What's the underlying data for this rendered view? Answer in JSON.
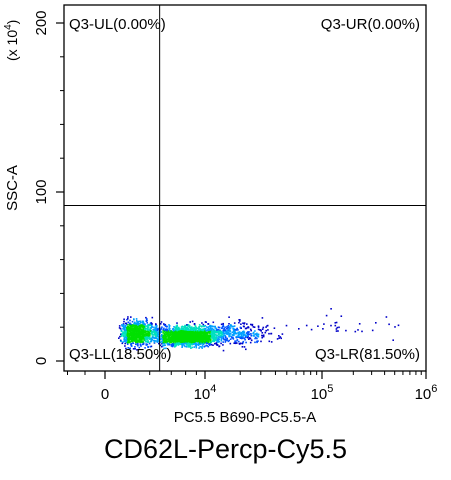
{
  "chart_data": {
    "type": "scatter",
    "title": "CD62L-Percp-Cy5.5",
    "xlabel": "PC5.5 B690-PC5.5-A",
    "ylabel": "SSC-A",
    "y_scale_note": "(x 10",
    "y_scale_exp": "4",
    "x_scale": "log",
    "y_scale": "linear",
    "x_ticks": [
      {
        "value": 0,
        "base": "0",
        "exp": ""
      },
      {
        "value": 10000,
        "base": "10",
        "exp": "4"
      },
      {
        "value": 100000,
        "base": "10",
        "exp": "5"
      },
      {
        "value": 1000000,
        "base": "10",
        "exp": "6"
      }
    ],
    "y_ticks": [
      {
        "value": 0,
        "label": "0"
      },
      {
        "value": 100,
        "label": "100"
      },
      {
        "value": 200,
        "label": "200"
      }
    ],
    "ylim": [
      -5,
      205
    ],
    "gate": {
      "x": 2800,
      "y": 92
    },
    "quadrants": [
      {
        "name": "Q3-UL",
        "percent": "0.00%",
        "label": "Q3-UL(0.00%)",
        "position": "top-left"
      },
      {
        "name": "Q3-UR",
        "percent": "0.00%",
        "label": "Q3-UR(0.00%)",
        "position": "top-right"
      },
      {
        "name": "Q3-LL",
        "percent": "18.50%",
        "label": "Q3-LL(18.50%)",
        "position": "bottom-left"
      },
      {
        "name": "Q3-LR",
        "percent": "81.50%",
        "label": "Q3-LR(81.50%)",
        "position": "bottom-right"
      }
    ],
    "density_clusters": [
      {
        "x_center": 1200,
        "y_center": 17,
        "x_spread": 1.8,
        "y_spread": 5,
        "count": 900
      },
      {
        "x_center": 6000,
        "y_center": 15,
        "x_spread": 1.7,
        "y_spread": 4,
        "count": 1700
      },
      {
        "x_center": 15000,
        "y_center": 17,
        "x_spread": 1.9,
        "y_spread": 5,
        "count": 500
      },
      {
        "x_center": 150000,
        "y_center": 20,
        "x_spread": 3.0,
        "y_spread": 6,
        "count": 30
      }
    ]
  }
}
